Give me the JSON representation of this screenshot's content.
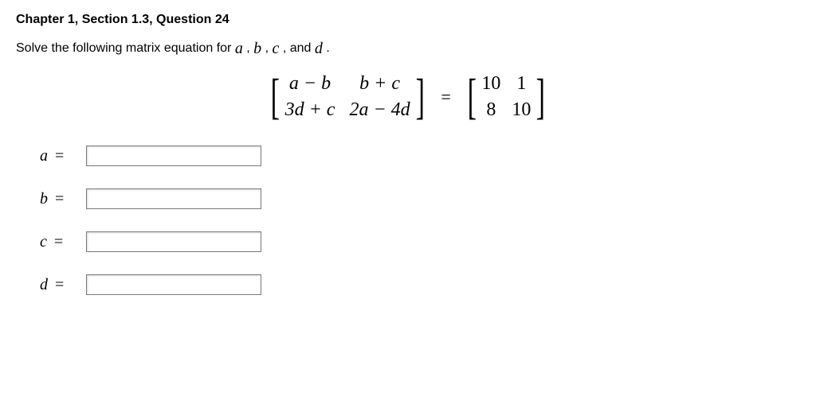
{
  "heading": {
    "text": "Chapter 1, Section 1.3, Question 24",
    "color": "#b03418"
  },
  "prompt": {
    "prefix": "Solve the following matrix equation for  ",
    "vars": [
      "a",
      "b",
      "c",
      "d"
    ],
    "separator": " ,  ",
    "before_last": " , and  ",
    "suffix": " ."
  },
  "equation": {
    "left_matrix": {
      "rows": [
        [
          "a − b",
          "b + c"
        ],
        [
          "3d + c",
          "2a − 4d"
        ]
      ],
      "italic": true
    },
    "equals": "=",
    "right_matrix": {
      "rows": [
        [
          "10",
          "1"
        ],
        [
          "8",
          "10"
        ]
      ],
      "italic": false
    }
  },
  "answers": [
    {
      "var": "a",
      "value": ""
    },
    {
      "var": "b",
      "value": ""
    },
    {
      "var": "c",
      "value": ""
    },
    {
      "var": "d",
      "value": ""
    }
  ],
  "style": {
    "heading_color": "#b03418",
    "body_text_color": "#000000",
    "input_border": "#7a7a7a"
  }
}
